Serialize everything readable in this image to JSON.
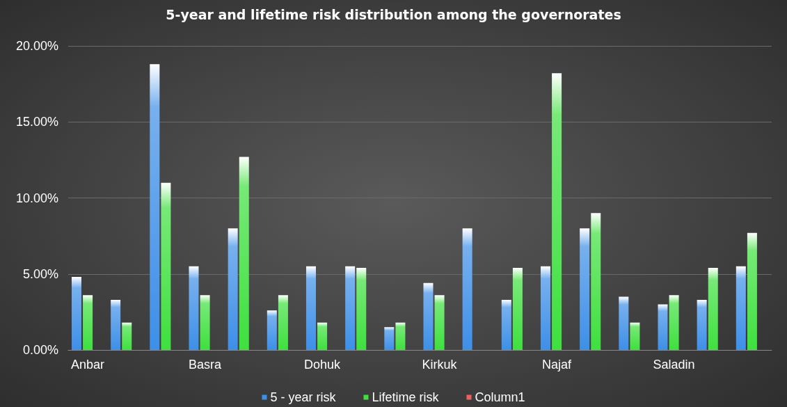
{
  "chart_data": {
    "type": "bar",
    "title": "5-year and lifetime risk distribution among the governorates",
    "categories": [
      "Anbar",
      null,
      null,
      "Basra",
      null,
      null,
      "Dohuk",
      null,
      null,
      "Kirkuk",
      null,
      null,
      "Najaf",
      null,
      null,
      "Saladin",
      null,
      null
    ],
    "series": [
      {
        "name": "5 - year risk",
        "color": "#3d8fe8",
        "values": [
          4.8,
          3.3,
          18.8,
          5.5,
          8.0,
          2.6,
          5.5,
          5.5,
          1.5,
          4.4,
          8.0,
          3.3,
          5.5,
          8.0,
          3.5,
          3.0,
          3.3,
          5.5
        ]
      },
      {
        "name": "Lifetime risk",
        "color": "#3ee03e",
        "values": [
          3.6,
          1.8,
          11.0,
          3.6,
          12.7,
          3.6,
          1.8,
          5.4,
          1.8,
          3.6,
          null,
          5.4,
          18.2,
          9.0,
          1.8,
          3.6,
          5.4,
          7.7
        ]
      },
      {
        "name": "Column1",
        "color": "#f06060",
        "values": [
          null,
          null,
          null,
          null,
          null,
          null,
          null,
          null,
          null,
          null,
          null,
          null,
          null,
          null,
          null,
          null,
          null,
          null
        ]
      }
    ],
    "ylim": [
      0,
      20
    ],
    "yticks": [
      {
        "value": 0,
        "label": "0.00%"
      },
      {
        "value": 5,
        "label": "5.00%"
      },
      {
        "value": 10,
        "label": "10.00%"
      },
      {
        "value": 15,
        "label": "15.00%"
      },
      {
        "value": 20,
        "label": "20.00%"
      }
    ],
    "grid": "y",
    "legend": "bottom"
  }
}
